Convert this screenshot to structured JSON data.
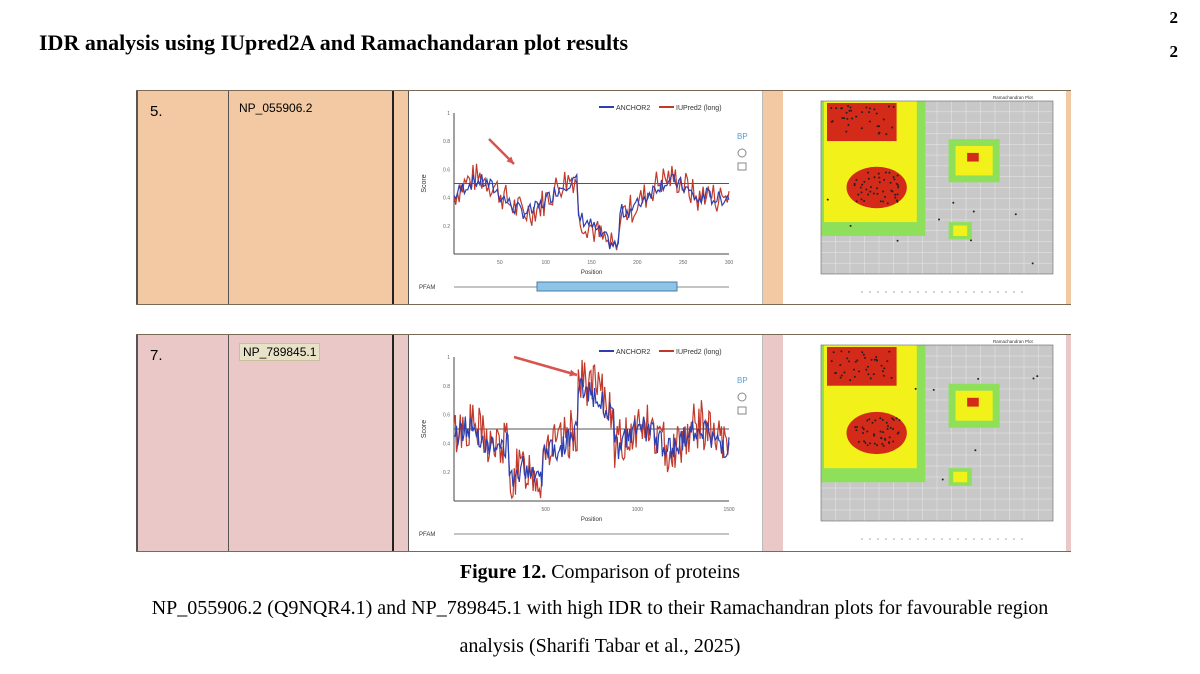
{
  "page_number": [
    "2",
    "2"
  ],
  "heading": "IDR analysis using IUpred2A and Ramachandaran plot results",
  "rows": [
    {
      "number": "5.",
      "protein_id": "NP_055906.2",
      "row_color": "#f2c9a2",
      "plot": {
        "legend_anchor": "ANCHOR2",
        "legend_iupred": "IUPred2 (long)",
        "ylabel": "Score",
        "xlabel": "Position",
        "yticks": [
          "0.2",
          "0.4",
          "0.6",
          "0.8",
          "1"
        ],
        "xticks": [
          "50",
          "100",
          "150",
          "200",
          "250",
          "300"
        ],
        "pfam_label": "PFAM",
        "side_label": "BP",
        "red_color": "#c0392b",
        "blue_color": "#2b3fb0"
      },
      "rama_title": "Ramachandran Plot"
    },
    {
      "number": "7.",
      "protein_id": "NP_789845.1",
      "row_color": "#eac8c8",
      "plot": {
        "legend_anchor": "ANCHOR2",
        "legend_iupred": "IUPred2 (long)",
        "ylabel": "Score",
        "xlabel": "Position",
        "yticks": [
          "0.2",
          "0.4",
          "0.6",
          "0.8",
          "1"
        ],
        "xticks": [
          "500",
          "1000",
          "1500"
        ],
        "pfam_label": "PFAM",
        "side_label": "BP",
        "red_color": "#c0392b",
        "blue_color": "#2b3fb0"
      },
      "rama_title": "Ramachandran Plot"
    }
  ],
  "caption": {
    "figure_label": "Figure 12.",
    "line1_rest": "Comparison of proteins",
    "line2": "NP_055906.2 (Q9NQR4.1) and NP_789845.1 with high IDR to their Ramachandran plots for favourable region",
    "line3": "analysis (Sharifi Tabar et al., 2025)"
  },
  "colors": {
    "rama_core": "#d42a1a",
    "rama_allowed": "#f2f21a",
    "rama_generous": "#8ee05a",
    "rama_disallowed": "#c8c8c8",
    "arrow": "#d9534f"
  }
}
